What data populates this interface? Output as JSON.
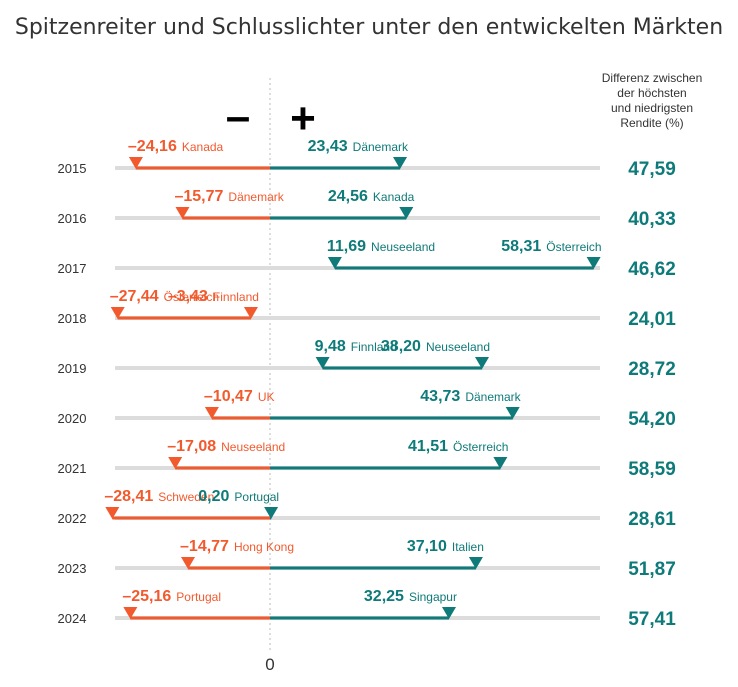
{
  "colors": {
    "negative": "#f25a2e",
    "positive": "#0e7a7a",
    "track": "#dcdcdc",
    "axis": "#bbbbbb",
    "text": "#333333"
  },
  "chart_data": {
    "type": "range-bar",
    "title": "Spitzenreiter und Schlusslichter unter den entwickelten Märkten",
    "diff_header": [
      "Differenz zwischen",
      "der höchsten",
      "und niedrigsten",
      "Rendite (%)"
    ],
    "minus_symbol": "–",
    "plus_symbol": "+",
    "zero_label": "0",
    "xlim": [
      -32,
      60
    ],
    "rows": [
      {
        "year": "2015",
        "low": {
          "value": -24.16,
          "label": "–24,16",
          "country": "Kanada"
        },
        "high": {
          "value": 23.43,
          "label": "23,43",
          "country": "Dänemark"
        },
        "diff": "47,59"
      },
      {
        "year": "2016",
        "low": {
          "value": -15.77,
          "label": "–15,77",
          "country": "Dänemark"
        },
        "high": {
          "value": 24.56,
          "label": "24,56",
          "country": "Kanada"
        },
        "diff": "40,33"
      },
      {
        "year": "2017",
        "low": {
          "value": 11.69,
          "label": "11,69",
          "country": "Neuseeland"
        },
        "high": {
          "value": 58.31,
          "label": "58,31",
          "country": "Österreich"
        },
        "diff": "46,62"
      },
      {
        "year": "2018",
        "low": {
          "value": -27.44,
          "label": "–27,44",
          "country": "Österreich"
        },
        "high": {
          "value": -3.43,
          "label": "–3,43",
          "country": "Finnland"
        },
        "diff": "24,01"
      },
      {
        "year": "2019",
        "low": {
          "value": 9.48,
          "label": "9,48",
          "country": "Finnland"
        },
        "high": {
          "value": 38.2,
          "label": "38,20",
          "country": "Neuseeland"
        },
        "diff": "28,72"
      },
      {
        "year": "2020",
        "low": {
          "value": -10.47,
          "label": "–10,47",
          "country": "UK"
        },
        "high": {
          "value": 43.73,
          "label": "43,73",
          "country": "Dänemark"
        },
        "diff": "54,20"
      },
      {
        "year": "2021",
        "low": {
          "value": -17.08,
          "label": "–17,08",
          "country": "Neuseeland"
        },
        "high": {
          "value": 41.51,
          "label": "41,51",
          "country": "Österreich"
        },
        "diff": "58,59"
      },
      {
        "year": "2022",
        "low": {
          "value": -28.41,
          "label": "–28,41",
          "country": "Schweden"
        },
        "high": {
          "value": 0.2,
          "label": "0,20",
          "country": "Portugal"
        },
        "diff": "28,61"
      },
      {
        "year": "2023",
        "low": {
          "value": -14.77,
          "label": "–14,77",
          "country": "Hong Kong"
        },
        "high": {
          "value": 37.1,
          "label": "37,10",
          "country": "Italien"
        },
        "diff": "51,87"
      },
      {
        "year": "2024",
        "low": {
          "value": -25.16,
          "label": "–25,16",
          "country": "Portugal"
        },
        "high": {
          "value": 32.25,
          "label": "32,25",
          "country": "Singapur"
        },
        "diff": "57,41"
      }
    ]
  }
}
